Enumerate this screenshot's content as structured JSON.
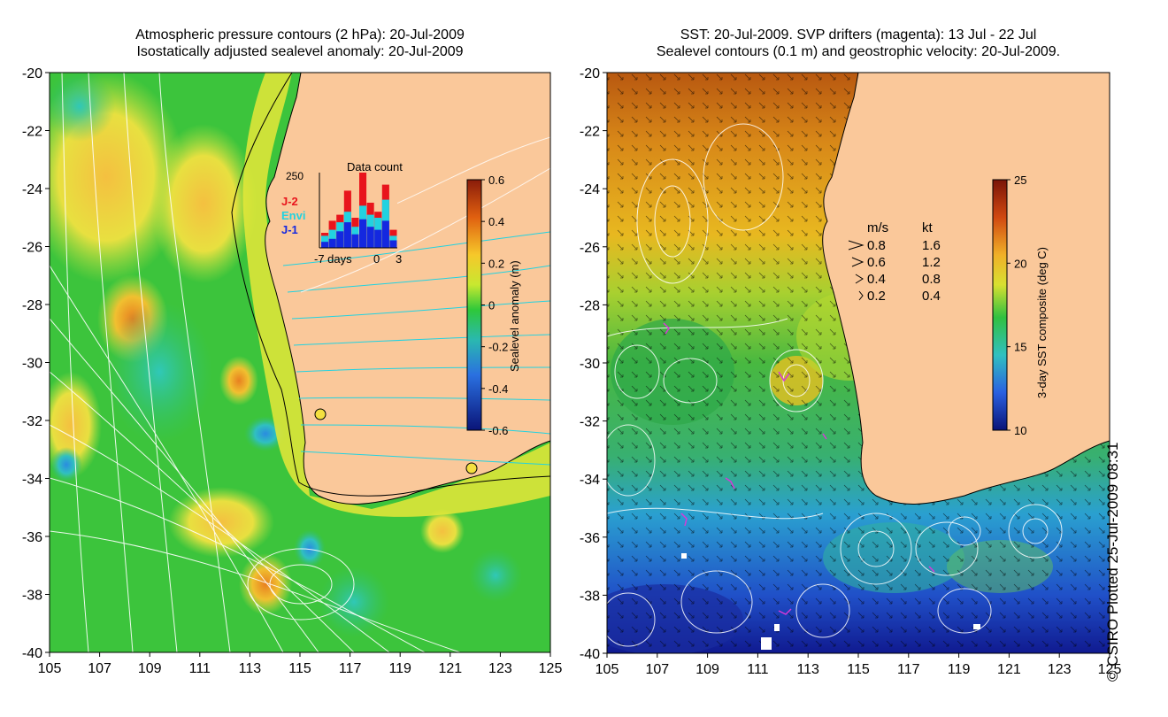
{
  "left_panel": {
    "title_line1": "Atmospheric pressure contours (2 hPa): 20-Jul-2009",
    "title_line2": "Isostatically adjusted sealevel anomaly: 20-Jul-2009",
    "lat_ticks": [
      "-20",
      "-22",
      "-24",
      "-26",
      "-28",
      "-30",
      "-32",
      "-34",
      "-36",
      "-38",
      "-40"
    ],
    "lon_ticks": [
      "105",
      "107",
      "109",
      "111",
      "113",
      "115",
      "117",
      "119",
      "121",
      "123",
      "125"
    ],
    "colorbar": {
      "label": "Sealevel anomaly (m)",
      "ticks": [
        "0.6",
        "0.4",
        "0.2",
        "0",
        "-0.2",
        "-0.4",
        "-0.6"
      ]
    },
    "data_count": {
      "title": "Data count",
      "max_label": "250",
      "x_labels": [
        "-7 days",
        "0",
        "3"
      ],
      "legend": [
        {
          "name": "J-2",
          "color": "#e8141c"
        },
        {
          "name": "Envi",
          "color": "#22d2e0"
        },
        {
          "name": "J-1",
          "color": "#1428e0"
        }
      ],
      "bars": [
        {
          "j2": 50,
          "envi": 40,
          "j1": 20
        },
        {
          "j2": 90,
          "envi": 60,
          "j1": 30
        },
        {
          "j2": 110,
          "envi": 85,
          "j1": 55
        },
        {
          "j2": 190,
          "envi": 120,
          "j1": 85
        },
        {
          "j2": 100,
          "envi": 70,
          "j1": 45
        },
        {
          "j2": 250,
          "envi": 140,
          "j1": 95
        },
        {
          "j2": 150,
          "envi": 110,
          "j1": 70
        },
        {
          "j2": 120,
          "envi": 100,
          "j1": 60
        },
        {
          "j2": 210,
          "envi": 160,
          "j1": 90
        },
        {
          "j2": 60,
          "envi": 40,
          "j1": 25
        }
      ]
    }
  },
  "right_panel": {
    "title_line1": "SST: 20-Jul-2009. SVP drifters (magenta): 13 Jul - 22 Jul",
    "title_line2": "Sealevel contours (0.1 m) and geostrophic velocity: 20-Jul-2009.",
    "lat_ticks": [
      "-20",
      "-22",
      "-24",
      "-26",
      "-28",
      "-30",
      "-32",
      "-34",
      "-36",
      "-38",
      "-40"
    ],
    "lon_ticks": [
      "105",
      "107",
      "109",
      "111",
      "113",
      "115",
      "117",
      "119",
      "121",
      "123",
      "125"
    ],
    "colorbar": {
      "label": "3-day SST composite (deg C)",
      "ticks": [
        "25",
        "20",
        "15",
        "10"
      ]
    },
    "velocity_legend": {
      "header_ms": "m/s",
      "header_kt": "kt",
      "rows": [
        {
          "ms": "0.8",
          "kt": "1.6"
        },
        {
          "ms": "0.6",
          "kt": "1.2"
        },
        {
          "ms": "0.4",
          "kt": "0.8"
        },
        {
          "ms": "0.2",
          "kt": "0.4"
        }
      ]
    }
  },
  "credit": "© CSIRO Plotted 25-Jul-2009 08:31"
}
